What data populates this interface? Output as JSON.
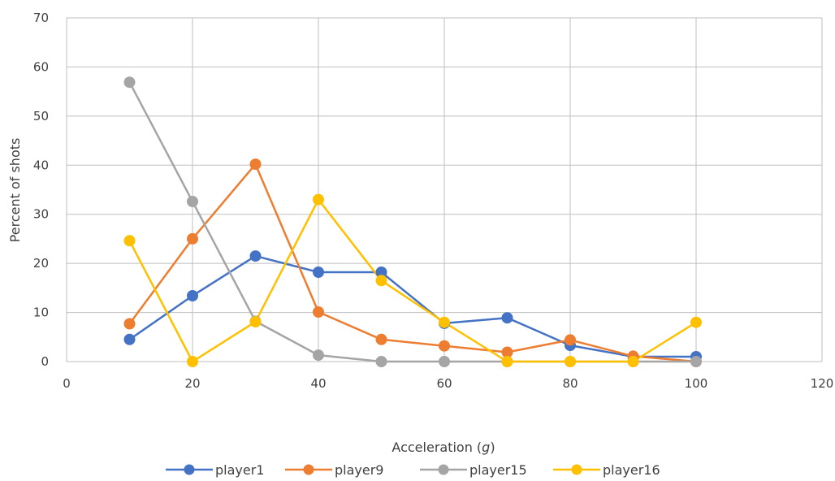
{
  "chart_data": {
    "type": "line",
    "xlabel_prefix": "Acceleration (",
    "xlabel_unit": "g",
    "xlabel_suffix": ")",
    "ylabel": "Percent of shots",
    "xlim": [
      0,
      120
    ],
    "ylim": [
      0,
      70
    ],
    "xticks": [
      0,
      20,
      40,
      60,
      80,
      100,
      120
    ],
    "yticks": [
      0,
      10,
      20,
      30,
      40,
      50,
      60,
      70
    ],
    "grid": true,
    "legend_position": "bottom",
    "x": [
      10,
      20,
      30,
      40,
      50,
      60,
      70,
      80,
      90,
      100
    ],
    "series": [
      {
        "name": "player1",
        "color": "#4472C4",
        "values": [
          4.5,
          13.4,
          21.5,
          18.2,
          18.2,
          7.8,
          8.9,
          3.3,
          1.0,
          1.0
        ]
      },
      {
        "name": "player9",
        "color": "#ED7D31",
        "values": [
          7.7,
          25.0,
          40.2,
          10.1,
          4.5,
          3.2,
          1.9,
          4.4,
          1.1,
          0.0
        ]
      },
      {
        "name": "player15",
        "color": "#A5A5A5",
        "values": [
          56.9,
          32.6,
          8.2,
          1.3,
          0.0,
          0.0,
          0.0,
          0.0,
          0.0,
          0.0
        ]
      },
      {
        "name": "player16",
        "color": "#FFC000",
        "values": [
          24.6,
          0.0,
          8.1,
          33.0,
          16.5,
          8.0,
          0.0,
          0.0,
          0.0,
          8.0
        ]
      }
    ]
  }
}
